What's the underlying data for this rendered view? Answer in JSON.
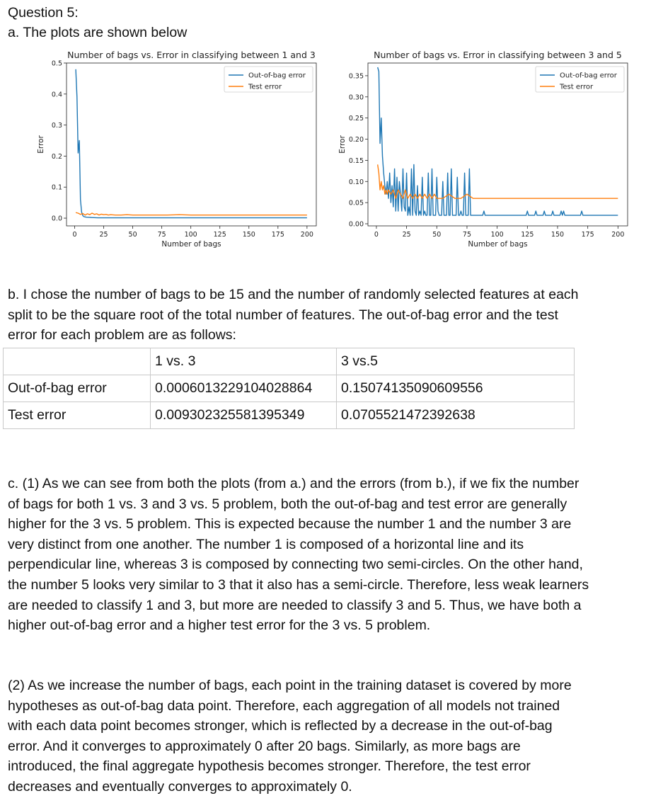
{
  "heading": "Question 5:",
  "part_a": "a. The plots are shown below",
  "chart_data": [
    {
      "type": "line",
      "title": "Number of bags vs. Error in classifying between 1 and 3",
      "xlabel": "Number of bags",
      "ylabel": "Error",
      "xlim": [
        -7,
        208
      ],
      "ylim": [
        -0.025,
        0.5
      ],
      "xticks": [
        0,
        25,
        50,
        75,
        100,
        125,
        150,
        175,
        200
      ],
      "yticks": [
        0.0,
        0.1,
        0.2,
        0.3,
        0.4,
        0.5
      ],
      "ytick_labels": [
        "0.0",
        "0.1",
        "0.2",
        "0.3",
        "0.4",
        "0.5"
      ],
      "legend_position": "top-right",
      "grid": false,
      "series": [
        {
          "name": "Out-of-bag error",
          "color": "#1f77b4",
          "x": [
            1,
            2,
            3,
            4,
            5,
            6,
            7,
            8,
            9,
            10,
            15,
            20,
            25,
            30,
            40,
            50,
            60,
            70,
            80,
            90,
            100,
            110,
            120,
            130,
            140,
            150,
            160,
            170,
            180,
            190,
            200
          ],
          "y": [
            0.48,
            0.39,
            0.21,
            0.25,
            0.06,
            0.02,
            0.008,
            0.005,
            0.004,
            0.003,
            0.002,
            0.001,
            0.001,
            0.001,
            0.001,
            0.001,
            0.001,
            0.001,
            0.001,
            0.001,
            0.001,
            0.001,
            0.001,
            0.001,
            0.001,
            0.001,
            0.001,
            0.001,
            0.001,
            0.001,
            0.001
          ]
        },
        {
          "name": "Test error",
          "color": "#ff7f0e",
          "x": [
            1,
            3,
            5,
            7,
            9,
            11,
            13,
            15,
            17,
            19,
            21,
            23,
            25,
            27,
            29,
            31,
            35,
            40,
            45,
            50,
            60,
            70,
            80,
            90,
            100,
            110,
            120,
            130,
            140,
            150,
            160,
            170,
            180,
            190,
            200
          ],
          "y": [
            0.018,
            0.016,
            0.012,
            0.015,
            0.01,
            0.014,
            0.011,
            0.016,
            0.012,
            0.014,
            0.01,
            0.013,
            0.011,
            0.012,
            0.01,
            0.011,
            0.01,
            0.01,
            0.011,
            0.01,
            0.01,
            0.01,
            0.01,
            0.011,
            0.01,
            0.01,
            0.01,
            0.01,
            0.01,
            0.01,
            0.01,
            0.01,
            0.01,
            0.01,
            0.01
          ]
        }
      ]
    },
    {
      "type": "line",
      "title": "Number of bags vs. Error in classifying between 3 and 5",
      "xlabel": "Number of bags",
      "ylabel": "Error",
      "xlim": [
        -7,
        208
      ],
      "ylim": [
        -0.005,
        0.38
      ],
      "xticks": [
        0,
        25,
        50,
        75,
        100,
        125,
        150,
        175,
        200
      ],
      "yticks": [
        0.0,
        0.05,
        0.1,
        0.15,
        0.2,
        0.25,
        0.3,
        0.35
      ],
      "ytick_labels": [
        "0.00",
        "0.05",
        "0.10",
        "0.15",
        "0.20",
        "0.25",
        "0.30",
        "0.35"
      ],
      "legend_position": "top-right",
      "grid": false,
      "series": [
        {
          "name": "Out-of-bag error",
          "color": "#1f77b4",
          "x": [
            1,
            2,
            3,
            4,
            5,
            6,
            7,
            8,
            9,
            10,
            11,
            12,
            13,
            14,
            15,
            16,
            17,
            18,
            19,
            20,
            21,
            22,
            23,
            24,
            25,
            26,
            27,
            28,
            29,
            30,
            31,
            32,
            33,
            34,
            35,
            36,
            37,
            38,
            39,
            40,
            41,
            42,
            43,
            44,
            45,
            46,
            47,
            48,
            49,
            50,
            51,
            52,
            53,
            54,
            55,
            56,
            57,
            58,
            59,
            60,
            61,
            62,
            63,
            64,
            65,
            66,
            67,
            68,
            69,
            70,
            71,
            72,
            73,
            74,
            75,
            76,
            77,
            78,
            79,
            80,
            81,
            82,
            83,
            84,
            85,
            86,
            87,
            88,
            89,
            90,
            91,
            92,
            93,
            94,
            95,
            96,
            97,
            98,
            99,
            100,
            101,
            102,
            103,
            104,
            105,
            106,
            107,
            108,
            109,
            110,
            111,
            112,
            113,
            114,
            115,
            116,
            117,
            118,
            119,
            120,
            121,
            122,
            123,
            124,
            125,
            126,
            127,
            128,
            129,
            130,
            131,
            132,
            133,
            134,
            135,
            136,
            137,
            138,
            139,
            140,
            141,
            142,
            143,
            144,
            145,
            146,
            147,
            148,
            149,
            150,
            151,
            152,
            153,
            154,
            155,
            156,
            157,
            158,
            159,
            160,
            161,
            162,
            163,
            164,
            165,
            166,
            167,
            168,
            169,
            170,
            171,
            172,
            173,
            174,
            175,
            176,
            177,
            178,
            179,
            180,
            181,
            182,
            183,
            184,
            185,
            186,
            187,
            188,
            189,
            190,
            191,
            192,
            193,
            194,
            195,
            196,
            197,
            198,
            199,
            200
          ],
          "y": [
            0.37,
            0.36,
            0.19,
            0.25,
            0.16,
            0.12,
            0.09,
            0.07,
            0.1,
            0.06,
            0.12,
            0.05,
            0.09,
            0.04,
            0.13,
            0.03,
            0.11,
            0.03,
            0.1,
            0.07,
            0.03,
            0.13,
            0.04,
            0.03,
            0.12,
            0.02,
            0.04,
            0.02,
            0.13,
            0.02,
            0.14,
            0.03,
            0.02,
            0.09,
            0.02,
            0.03,
            0.02,
            0.11,
            0.02,
            0.03,
            0.02,
            0.02,
            0.12,
            0.02,
            0.02,
            0.13,
            0.02,
            0.02,
            0.02,
            0.11,
            0.03,
            0.02,
            0.02,
            0.02,
            0.1,
            0.02,
            0.02,
            0.02,
            0.12,
            0.02,
            0.02,
            0.13,
            0.02,
            0.02,
            0.02,
            0.02,
            0.11,
            0.02,
            0.02,
            0.03,
            0.02,
            0.02,
            0.12,
            0.02,
            0.02,
            0.02,
            0.13,
            0.02,
            0.02,
            0.02,
            0.02,
            0.02,
            0.02,
            0.02,
            0.02,
            0.02,
            0.02,
            0.02,
            0.03,
            0.02,
            0.02,
            0.02,
            0.02,
            0.02,
            0.02,
            0.02,
            0.02,
            0.02,
            0.02,
            0.02,
            0.02,
            0.02,
            0.02,
            0.02,
            0.02,
            0.02,
            0.02,
            0.02,
            0.02,
            0.02,
            0.02,
            0.02,
            0.02,
            0.02,
            0.02,
            0.02,
            0.02,
            0.02,
            0.02,
            0.02,
            0.02,
            0.02,
            0.02,
            0.02,
            0.03,
            0.02,
            0.02,
            0.02,
            0.02,
            0.02,
            0.02,
            0.03,
            0.02,
            0.02,
            0.02,
            0.02,
            0.02,
            0.02,
            0.03,
            0.02,
            0.02,
            0.02,
            0.02,
            0.02,
            0.02,
            0.03,
            0.02,
            0.02,
            0.02,
            0.02,
            0.02,
            0.02,
            0.03,
            0.02,
            0.03,
            0.02,
            0.02,
            0.02,
            0.02,
            0.02,
            0.02,
            0.02,
            0.02,
            0.02,
            0.02,
            0.02,
            0.02,
            0.02,
            0.02,
            0.03,
            0.02,
            0.02,
            0.02,
            0.02,
            0.02,
            0.02,
            0.02,
            0.02,
            0.02,
            0.02,
            0.02,
            0.02,
            0.02,
            0.02,
            0.02,
            0.02,
            0.02,
            0.02,
            0.02,
            0.02,
            0.02,
            0.02,
            0.02,
            0.02,
            0.02,
            0.02,
            0.02,
            0.02,
            0.02,
            0.02
          ]
        },
        {
          "name": "Test error",
          "color": "#ff7f0e",
          "x": [
            1,
            2,
            3,
            4,
            5,
            6,
            7,
            8,
            9,
            10,
            12,
            14,
            16,
            18,
            20,
            22,
            24,
            26,
            28,
            30,
            32,
            34,
            36,
            38,
            40,
            42,
            44,
            46,
            48,
            50,
            55,
            60,
            65,
            70,
            75,
            80,
            85,
            90,
            95,
            100,
            105,
            110,
            115,
            120,
            125,
            130,
            135,
            140,
            145,
            150,
            155,
            160,
            165,
            170,
            175,
            180,
            185,
            190,
            195,
            200
          ],
          "y": [
            0.14,
            0.12,
            0.08,
            0.1,
            0.08,
            0.09,
            0.07,
            0.08,
            0.07,
            0.08,
            0.07,
            0.08,
            0.06,
            0.08,
            0.07,
            0.06,
            0.08,
            0.06,
            0.07,
            0.06,
            0.07,
            0.06,
            0.07,
            0.06,
            0.07,
            0.06,
            0.07,
            0.06,
            0.07,
            0.06,
            0.06,
            0.07,
            0.06,
            0.06,
            0.07,
            0.06,
            0.06,
            0.06,
            0.06,
            0.06,
            0.06,
            0.06,
            0.06,
            0.06,
            0.06,
            0.06,
            0.06,
            0.06,
            0.06,
            0.06,
            0.06,
            0.06,
            0.06,
            0.06,
            0.06,
            0.06,
            0.06,
            0.06,
            0.06,
            0.06
          ]
        }
      ]
    }
  ],
  "part_b": [
    "b. I chose the number of bags to be 15 and the number of randomly selected features at each",
    "split to be the square root of the total number of features. The out-of-bag error and the test",
    "error for each problem are as follows:"
  ],
  "table": {
    "header": [
      "",
      "1 vs. 3",
      "3 vs.5"
    ],
    "rows": [
      [
        "Out-of-bag error",
        "0.0006013229104028864",
        "0.15074135090609556"
      ],
      [
        "Test error",
        "0.009302325581395349",
        "0.0705521472392638"
      ]
    ]
  },
  "part_c1": [
    "c. (1) As we can see from both the plots (from a.) and the errors (from b.), if we fix the number",
    "of bags for both 1 vs. 3 and 3 vs. 5 problem, both the out-of-bag and test error are generally",
    "higher for the 3 vs. 5 problem. This is expected because the number 1 and the number 3 are",
    "very distinct from one another. The number 1 is composed of a horizontal line and its",
    "perpendicular line, whereas 3 is composed by connecting two semi-circles. On the other hand,",
    "the number 5 looks very similar to 3 that it also has a semi-circle. Therefore, less weak learners",
    "are needed to classify 1 and 3, but more are needed to classify 3 and 5. Thus, we have both a",
    "higher out-of-bag error and a higher test error for the 3 vs. 5 problem."
  ],
  "part_c2": [
    "(2) As we increase the number of bags, each point in the training dataset is covered by more",
    "hypotheses as out-of-bag data point. Therefore, each aggregation of all models not trained",
    "with each data point becomes stronger, which is reflected by a decrease in the out-of-bag",
    "error. And it converges to approximately 0 after 20 bags. Similarly, as more bags are",
    "introduced, the final aggregate hypothesis becomes stronger. Therefore, the test error",
    "decreases and eventually converges to approximately 0."
  ]
}
